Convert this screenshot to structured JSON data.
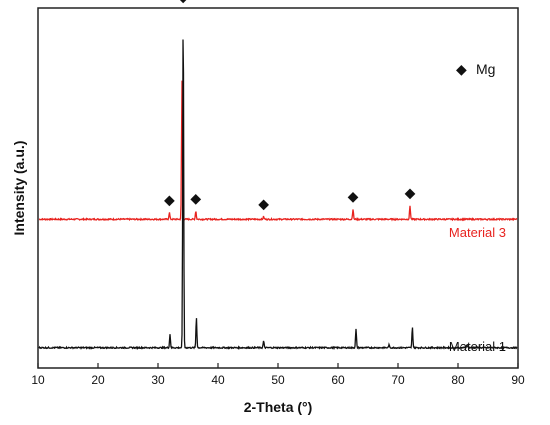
{
  "chart_data": {
    "type": "line",
    "xlabel": "2-Theta (°)",
    "ylabel": "Intensity (a.u.)",
    "xlim": [
      10,
      90
    ],
    "x_ticks": [
      10,
      20,
      30,
      40,
      50,
      60,
      70,
      80,
      90
    ],
    "y_ticks_shown": false,
    "grid": false,
    "series": [
      {
        "name": "Material 3",
        "color": "#e8231f",
        "baseline": 0.44,
        "peaks": [
          {
            "x": 31.9,
            "height": 0.02
          },
          {
            "x": 34.0,
            "height": 0.41
          },
          {
            "x": 36.3,
            "height": 0.025
          },
          {
            "x": 47.6,
            "height": 0.008
          },
          {
            "x": 62.5,
            "height": 0.03
          },
          {
            "x": 72.0,
            "height": 0.04
          }
        ]
      },
      {
        "name": "Material 1",
        "color": "#111111",
        "baseline": 0.06,
        "peaks": [
          {
            "x": 32.0,
            "height": 0.04
          },
          {
            "x": 34.2,
            "height": 1.0
          },
          {
            "x": 36.4,
            "height": 0.09
          },
          {
            "x": 47.6,
            "height": 0.02
          },
          {
            "x": 63.0,
            "height": 0.055
          },
          {
            "x": 68.5,
            "height": 0.008
          },
          {
            "x": 72.4,
            "height": 0.06
          },
          {
            "x": 81.5,
            "height": 0.01
          }
        ]
      }
    ],
    "markers": {
      "symbol": "◆",
      "phase": "Mg",
      "positions": [
        {
          "x": 31.9,
          "series": "Material 3"
        },
        {
          "x": 34.2,
          "series": "Material 1"
        },
        {
          "x": 36.3,
          "series": "Material 3"
        },
        {
          "x": 47.6,
          "series": "Material 3"
        },
        {
          "x": 62.5,
          "series": "Material 3"
        },
        {
          "x": 72.0,
          "series": "Material 3"
        }
      ]
    },
    "legend": {
      "symbol": "◆",
      "label": "Mg",
      "placement": "top-right"
    }
  }
}
